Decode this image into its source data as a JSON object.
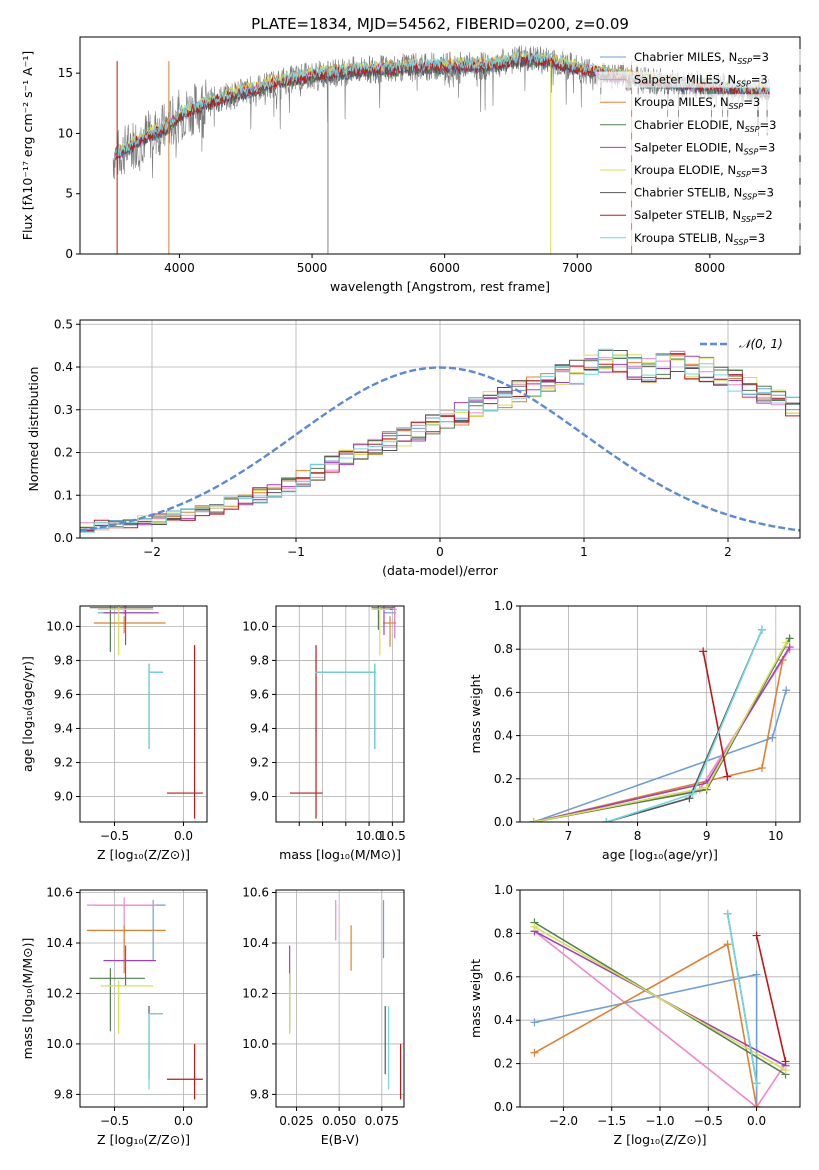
{
  "figure_title": "PLATE=1834, MJD=54562, FIBERID=0200, z=0.09",
  "colors": {
    "Chabrier MILES": "#6f9fd8",
    "Salpeter MILES": "#ee88cc",
    "Kroupa MILES": "#e08030",
    "Chabrier ELODIE": "#508050",
    "Salpeter ELODIE": "#a040c0",
    "Kroupa ELODIE": "#d8e050",
    "Chabrier STELIB": "#555555",
    "Salpeter STELIB": "#c01818",
    "Kroupa STELIB": "#70d8e0",
    "gaussian": "#5a8ad8",
    "grid": "#b0b0b0"
  },
  "chart_data": [
    {
      "id": "spectrum",
      "type": "line",
      "xlabel": "wavelength [Angstrom, rest frame]",
      "ylabel": "Flux [fλ10⁻¹⁷ erg cm⁻² s⁻¹ A⁻¹]",
      "xlim": [
        3250,
        8680
      ],
      "ylim": [
        0,
        18
      ],
      "xticks": [
        4000,
        5000,
        6000,
        7000,
        8000
      ],
      "yticks": [
        0,
        5,
        10,
        15
      ],
      "grid": false,
      "legend_position": "right",
      "legend": [
        {
          "name": "Chabrier MILES, N",
          "sub": "SSP",
          "n": "=3"
        },
        {
          "name": "Salpeter MILES, N",
          "sub": "SSP",
          "n": "=3"
        },
        {
          "name": "Kroupa MILES, N",
          "sub": "SSP",
          "n": "=3"
        },
        {
          "name": "Chabrier ELODIE, N",
          "sub": "SSP",
          "n": "=3"
        },
        {
          "name": "Salpeter ELODIE, N",
          "sub": "SSP",
          "n": "=3"
        },
        {
          "name": "Kroupa ELODIE, N",
          "sub": "SSP",
          "n": "=3"
        },
        {
          "name": "Chabrier STELIB, N",
          "sub": "SSP",
          "n": "=3"
        },
        {
          "name": "Salpeter STELIB, N",
          "sub": "SSP",
          "n": "=2"
        },
        {
          "name": "Kroupa STELIB, N",
          "sub": "SSP",
          "n": "=3"
        }
      ],
      "continuum_x": [
        3500,
        3700,
        3900,
        4000,
        4200,
        4500,
        4800,
        5000,
        5300,
        5600,
        6000,
        6300,
        6600,
        6800,
        7000,
        7300,
        7600,
        8000,
        8300,
        8450
      ],
      "continuum_y": [
        8.0,
        9.5,
        10.5,
        11.5,
        12.5,
        13.5,
        14.4,
        14.8,
        15.2,
        15.4,
        15.6,
        15.6,
        16.2,
        16.0,
        15.4,
        14.8,
        14.3,
        13.9,
        13.6,
        13.4
      ]
    },
    {
      "id": "residuals",
      "type": "bar",
      "xlabel": "(data-model)/error",
      "ylabel": "Normed distribution",
      "xlim": [
        -2.5,
        2.5
      ],
      "ylim": [
        0,
        0.51
      ],
      "xticks": [
        -2,
        -1,
        0,
        1,
        2
      ],
      "xtick_labels": [
        "−2",
        "−1",
        "0",
        "1",
        "2"
      ],
      "yticks": [
        0.0,
        0.1,
        0.2,
        0.3,
        0.4,
        0.5
      ],
      "grid": true,
      "legend_label": "𝒩(0, 1)",
      "legend_position": "top-right",
      "bin_width": 0.1,
      "bin_start": -2.5,
      "base_heights": [
        0.025,
        0.03,
        0.03,
        0.035,
        0.04,
        0.045,
        0.05,
        0.055,
        0.065,
        0.07,
        0.08,
        0.09,
        0.1,
        0.11,
        0.125,
        0.14,
        0.155,
        0.17,
        0.185,
        0.2,
        0.21,
        0.225,
        0.24,
        0.25,
        0.265,
        0.28,
        0.29,
        0.305,
        0.32,
        0.33,
        0.345,
        0.36,
        0.37,
        0.385,
        0.39,
        0.4,
        0.41,
        0.42,
        0.4,
        0.39,
        0.4,
        0.41,
        0.4,
        0.395,
        0.38,
        0.37,
        0.355,
        0.34,
        0.33,
        0.31,
        0.3,
        0.28,
        0.265,
        0.245,
        0.23,
        0.21,
        0.195,
        0.18,
        0.165,
        0.15,
        0.135,
        0.125,
        0.11,
        0.1,
        0.09,
        0.08,
        0.07,
        0.06,
        0.05,
        0.045,
        0.04,
        0.035,
        0.03,
        0.03,
        0.028,
        0.03,
        0.035,
        0.03,
        0.04,
        0.035,
        0.04
      ]
    },
    {
      "id": "age_vs_Z",
      "type": "scatter",
      "xlabel": "Z [log₁₀(Z/Z⊙)]",
      "ylabel": "age  [log₁₀(age/yr)]",
      "xlim": [
        -0.75,
        0.17
      ],
      "ylim": [
        8.85,
        10.12
      ],
      "xticks": [
        -0.5,
        0.0
      ],
      "xtick_labels": [
        "−0.5",
        "0.0"
      ],
      "yticks": [
        9.0,
        9.2,
        9.4,
        9.6,
        9.8,
        10.0
      ],
      "grid": true,
      "points": [
        {
          "model": "Chabrier MILES",
          "x": -0.42,
          "y": 10.08,
          "xl": -0.62,
          "xh": -0.22,
          "yl": 10.03,
          "yh": 10.11
        },
        {
          "model": "Salpeter MILES",
          "x": -0.43,
          "y": 10.1,
          "xl": -0.62,
          "xh": -0.24,
          "yl": 10.07,
          "yh": 10.12
        },
        {
          "model": "Kroupa MILES",
          "x": -0.43,
          "y": 10.02,
          "xl": -0.65,
          "xh": -0.13,
          "yl": 9.96,
          "yh": 10.06
        },
        {
          "model": "Chabrier ELODIE",
          "x": -0.53,
          "y": 10.11,
          "xl": -0.68,
          "xh": -0.22,
          "yl": 9.85,
          "yh": 10.12
        },
        {
          "model": "Salpeter ELODIE",
          "x": -0.42,
          "y": 10.08,
          "xl": -0.58,
          "xh": -0.18,
          "yl": 9.89,
          "yh": 10.12
        },
        {
          "model": "Kroupa ELODIE",
          "x": -0.47,
          "y": 10.1,
          "xl": -0.62,
          "xh": -0.22,
          "yl": 9.83,
          "yh": 10.12
        },
        {
          "model": "Chabrier STELIB",
          "x": -0.25,
          "y": 9.73,
          "xl": -0.25,
          "xh": -0.15,
          "yl": 9.28,
          "yh": 9.78
        },
        {
          "model": "Salpeter STELIB",
          "x": 0.08,
          "y": 9.02,
          "xl": -0.12,
          "xh": 0.14,
          "yl": 8.87,
          "yh": 9.89
        },
        {
          "model": "Kroupa STELIB",
          "x": -0.25,
          "y": 9.73,
          "xl": -0.25,
          "xh": -0.15,
          "yl": 9.28,
          "yh": 9.78
        }
      ]
    },
    {
      "id": "age_vs_mass",
      "type": "scatter",
      "xlabel": "mass [log₁₀(M/M⊙)]",
      "ylabel": "",
      "xlim": [
        8.0,
        10.75
      ],
      "ylim": [
        8.85,
        10.12
      ],
      "xticks": [
        8.5,
        9.0,
        9.5,
        10.0,
        10.5
      ],
      "xtick_labels": [
        "",
        "",
        "",
        "10.0",
        "10.5"
      ],
      "yticks": [
        9.0,
        9.2,
        9.4,
        9.6,
        9.8,
        10.0
      ],
      "grid": true,
      "points": [
        {
          "model": "Chabrier MILES",
          "x": 10.55,
          "y": 10.08,
          "xl": 10.33,
          "xh": 10.58,
          "yl": 9.93,
          "yh": 10.12
        },
        {
          "model": "Salpeter MILES",
          "x": 10.55,
          "y": 10.1,
          "xl": 10.4,
          "xh": 10.6,
          "yl": 9.93,
          "yh": 10.12
        },
        {
          "model": "Kroupa MILES",
          "x": 10.45,
          "y": 10.02,
          "xl": 10.3,
          "xh": 10.58,
          "yl": 9.88,
          "yh": 10.06
        },
        {
          "model": "Chabrier ELODIE",
          "x": 10.2,
          "y": 10.11,
          "xl": 10.05,
          "xh": 10.55,
          "yl": 9.98,
          "yh": 10.12
        },
        {
          "model": "Salpeter ELODIE",
          "x": 10.32,
          "y": 10.1,
          "xl": 10.1,
          "xh": 10.5,
          "yl": 9.95,
          "yh": 10.12
        },
        {
          "model": "Kroupa ELODIE",
          "x": 10.23,
          "y": 10.1,
          "xl": 10.05,
          "xh": 10.45,
          "yl": 9.83,
          "yh": 10.12
        },
        {
          "model": "Chabrier STELIB",
          "x": 10.12,
          "y": 9.73,
          "xl": 8.85,
          "xh": 10.15,
          "yl": 9.28,
          "yh": 9.78
        },
        {
          "model": "Salpeter STELIB",
          "x": 8.86,
          "y": 9.02,
          "xl": 8.3,
          "xh": 9.0,
          "yl": 8.87,
          "yh": 9.89
        },
        {
          "model": "Kroupa STELIB",
          "x": 10.12,
          "y": 9.73,
          "xl": 8.85,
          "xh": 10.15,
          "yl": 9.28,
          "yh": 9.78
        }
      ]
    },
    {
      "id": "massweight_vs_age",
      "type": "line",
      "xlabel": "age  [log₁₀(age/yr)]",
      "ylabel": "mass weight",
      "xlim": [
        6.3,
        10.35
      ],
      "ylim": [
        0,
        1.0
      ],
      "xticks": [
        7,
        8,
        9,
        10
      ],
      "yticks": [
        0.0,
        0.2,
        0.4,
        0.6,
        0.8,
        1.0
      ],
      "grid": true,
      "series": [
        {
          "model": "Chabrier MILES",
          "x": [
            6.5,
            9.95,
            10.15
          ],
          "y": [
            0.0,
            0.39,
            0.61
          ]
        },
        {
          "model": "Salpeter MILES",
          "x": [
            6.5,
            8.9,
            10.2
          ],
          "y": [
            0.0,
            0.15,
            0.8
          ]
        },
        {
          "model": "Kroupa MILES",
          "x": [
            6.5,
            9.8,
            10.1
          ],
          "y": [
            0.0,
            0.25,
            0.75
          ]
        },
        {
          "model": "Chabrier ELODIE",
          "x": [
            6.5,
            9.0,
            10.2
          ],
          "y": [
            0.0,
            0.15,
            0.85
          ]
        },
        {
          "model": "Salpeter ELODIE",
          "x": [
            6.5,
            9.0,
            10.2
          ],
          "y": [
            0.0,
            0.18,
            0.81
          ]
        },
        {
          "model": "Kroupa ELODIE",
          "x": [
            6.5,
            9.0,
            10.15
          ],
          "y": [
            0.0,
            0.16,
            0.83
          ]
        },
        {
          "model": "Chabrier STELIB",
          "x": [
            7.55,
            8.75,
            9.8
          ],
          "y": [
            0.0,
            0.11,
            0.89
          ]
        },
        {
          "model": "Salpeter STELIB",
          "x": [
            8.95,
            9.3
          ],
          "y": [
            0.79,
            0.21
          ]
        },
        {
          "model": "Kroupa STELIB",
          "x": [
            7.55,
            8.8,
            9.8
          ],
          "y": [
            0.0,
            0.13,
            0.89
          ]
        }
      ]
    },
    {
      "id": "mass_vs_Z",
      "type": "scatter",
      "xlabel": "Z [log₁₀(Z/Z⊙)]",
      "ylabel": "mass [log₁₀(M/M⊙)]",
      "xlim": [
        -0.75,
        0.17
      ],
      "ylim": [
        9.75,
        10.61
      ],
      "xticks": [
        -0.5,
        0.0
      ],
      "xtick_labels": [
        "−0.5",
        "0.0"
      ],
      "yticks": [
        9.8,
        10.0,
        10.2,
        10.4,
        10.6
      ],
      "grid": true,
      "points": [
        {
          "model": "Chabrier MILES",
          "x": -0.22,
          "y": 10.55,
          "xl": -0.65,
          "xh": -0.13,
          "yl": 10.33,
          "yh": 10.57
        },
        {
          "model": "Salpeter MILES",
          "x": -0.43,
          "y": 10.55,
          "xl": -0.7,
          "xh": -0.2,
          "yl": 10.4,
          "yh": 10.58
        },
        {
          "model": "Kroupa MILES",
          "x": -0.43,
          "y": 10.45,
          "xl": -0.7,
          "xh": -0.13,
          "yl": 10.28,
          "yh": 10.47
        },
        {
          "model": "Chabrier ELODIE",
          "x": -0.53,
          "y": 10.26,
          "xl": -0.68,
          "xh": -0.28,
          "yl": 10.05,
          "yh": 10.3
        },
        {
          "model": "Salpeter ELODIE",
          "x": -0.42,
          "y": 10.33,
          "xl": -0.58,
          "xh": -0.2,
          "yl": 10.23,
          "yh": 10.39
        },
        {
          "model": "Kroupa ELODIE",
          "x": -0.47,
          "y": 10.23,
          "xl": -0.6,
          "xh": -0.22,
          "yl": 10.04,
          "yh": 10.25
        },
        {
          "model": "Chabrier STELIB",
          "x": -0.25,
          "y": 10.12,
          "xl": -0.25,
          "xh": -0.15,
          "yl": 9.86,
          "yh": 10.15
        },
        {
          "model": "Salpeter STELIB",
          "x": 0.08,
          "y": 9.86,
          "xl": -0.12,
          "xh": 0.14,
          "yl": 9.78,
          "yh": 10.0
        },
        {
          "model": "Kroupa STELIB",
          "x": -0.25,
          "y": 10.12,
          "xl": -0.25,
          "xh": -0.15,
          "yl": 9.82,
          "yh": 10.12
        }
      ]
    },
    {
      "id": "mass_vs_EBV",
      "type": "scatter",
      "xlabel": "E(B-V)",
      "ylabel": "",
      "xlim": [
        0.013,
        0.088
      ],
      "ylim": [
        9.75,
        10.61
      ],
      "xticks": [
        0.025,
        0.05,
        0.075
      ],
      "xtick_labels": [
        "0.025",
        "0.050",
        "0.075"
      ],
      "yticks": [
        9.8,
        10.0,
        10.2,
        10.4,
        10.6
      ],
      "grid": true,
      "points": [
        {
          "model": "Chabrier MILES",
          "x": 0.076,
          "y": 10.55,
          "yl": 10.34,
          "yh": 10.57
        },
        {
          "model": "Salpeter MILES",
          "x": 0.048,
          "y": 10.55,
          "yl": 10.41,
          "yh": 10.57
        },
        {
          "model": "Kroupa MILES",
          "x": 0.057,
          "y": 10.45,
          "yl": 10.29,
          "yh": 10.47
        },
        {
          "model": "Chabrier ELODIE",
          "x": 0.021,
          "y": 10.26,
          "yl": 10.05,
          "yh": 10.28
        },
        {
          "model": "Salpeter ELODIE",
          "x": 0.021,
          "y": 10.33,
          "yl": 10.23,
          "yh": 10.39
        },
        {
          "model": "Kroupa ELODIE",
          "x": 0.021,
          "y": 10.2,
          "yl": 10.04,
          "yh": 10.28
        },
        {
          "model": "Chabrier STELIB",
          "x": 0.077,
          "y": 10.12,
          "yl": 9.88,
          "yh": 10.15
        },
        {
          "model": "Salpeter STELIB",
          "x": 0.086,
          "y": 9.86,
          "yl": 9.78,
          "yh": 10.0
        },
        {
          "model": "Kroupa STELIB",
          "x": 0.079,
          "y": 10.12,
          "yl": 9.82,
          "yh": 10.15
        }
      ]
    },
    {
      "id": "massweight_vs_Z",
      "type": "line",
      "xlabel": "Z [log₁₀(Z/Z⊙)]",
      "ylabel": "mass weight",
      "xlim": [
        -2.45,
        0.45
      ],
      "ylim": [
        0,
        1.0
      ],
      "xticks": [
        -2.0,
        -1.5,
        -1.0,
        -0.5,
        0.0
      ],
      "xtick_labels": [
        "−2.0",
        "−1.5",
        "−1.0",
        "−0.5",
        "0.0"
      ],
      "yticks": [
        0.0,
        0.2,
        0.4,
        0.6,
        0.8,
        1.0
      ],
      "grid": true,
      "series": [
        {
          "model": "Chabrier MILES",
          "x": [
            -2.3,
            0.0,
            0.0
          ],
          "y": [
            0.39,
            0.61,
            0.0
          ]
        },
        {
          "model": "Salpeter MILES",
          "x": [
            -2.3,
            0.0,
            0.3
          ],
          "y": [
            0.81,
            0.0,
            0.2
          ]
        },
        {
          "model": "Kroupa MILES",
          "x": [
            -2.3,
            -0.3,
            0.0
          ],
          "y": [
            0.25,
            0.75,
            0.0
          ]
        },
        {
          "model": "Chabrier ELODIE",
          "x": [
            -2.3,
            0.3
          ],
          "y": [
            0.85,
            0.15
          ]
        },
        {
          "model": "Salpeter ELODIE",
          "x": [
            -2.3,
            0.3
          ],
          "y": [
            0.81,
            0.19
          ]
        },
        {
          "model": "Kroupa ELODIE",
          "x": [
            -2.3,
            0.3
          ],
          "y": [
            0.83,
            0.17
          ]
        },
        {
          "model": "Chabrier STELIB",
          "x": [
            -0.3,
            0.0
          ],
          "y": [
            0.89,
            0.11
          ]
        },
        {
          "model": "Salpeter STELIB",
          "x": [
            0.0,
            0.3
          ],
          "y": [
            0.79,
            0.21
          ]
        },
        {
          "model": "Kroupa STELIB",
          "x": [
            -0.3,
            0.0
          ],
          "y": [
            0.89,
            0.11
          ]
        }
      ]
    }
  ]
}
